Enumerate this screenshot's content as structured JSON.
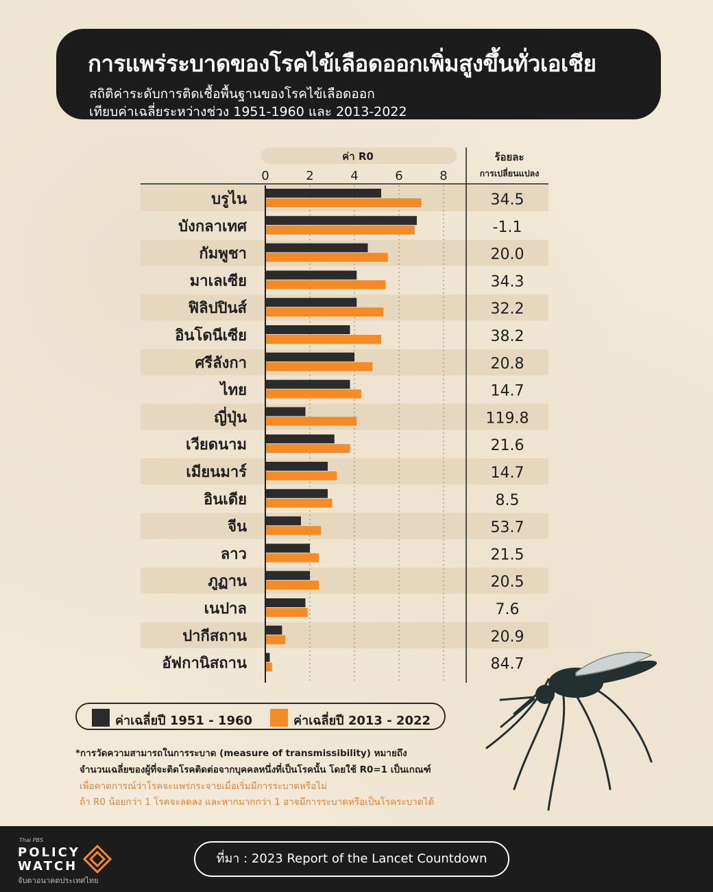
{
  "title": "การแพร่ระบาดของโรคไข้เลือดออกเพิ่มสูงขึ้นทั่วเอเชีย",
  "subtitle_line1": "สถิติค่าระดับการติดเชื้อพื้นฐานของโรคไข้เลือดออก",
  "subtitle_line2": "เทียบค่าเฉลี่ยระหว่างช่วง 1951-1960 และ 2013-2022",
  "colors": {
    "series1": "#2b2b2b",
    "series2": "#f58b27",
    "band": "#e6d8bf",
    "background": "#f3ead9",
    "dark": "#1c1c1c"
  },
  "chart_data": {
    "type": "bar",
    "orientation": "horizontal",
    "xlabel": "ค่า R0",
    "xlim": [
      0,
      8
    ],
    "xticks": [
      0,
      2,
      4,
      6,
      8
    ],
    "grid": "dotted vertical",
    "categories": [
      "บรูไน",
      "บังกลาเทศ",
      "กัมพูชา",
      "มาเลเซีย",
      "ฟิลิปปินส์",
      "อินโดนีเซีย",
      "ศรีลังกา",
      "ไทย",
      "ญี่ปุ่น",
      "เวียดนาม",
      "เมียนมาร์",
      "อินเดีย",
      "จีน",
      "ลาว",
      "ภูฏาน",
      "เนปาล",
      "ปากีสถาน",
      "อัฟกานิสถาน"
    ],
    "series": [
      {
        "name": "ค่าเฉลี่ยปี 1951 - 1960",
        "values": [
          5.2,
          6.8,
          4.6,
          4.1,
          4.1,
          3.8,
          4.0,
          3.8,
          1.8,
          3.1,
          2.8,
          2.8,
          1.6,
          2.0,
          2.0,
          1.8,
          0.75,
          0.2
        ]
      },
      {
        "name": "ค่าเฉลี่ยปี 2013 - 2022",
        "values": [
          7.0,
          6.7,
          5.5,
          5.4,
          5.3,
          5.2,
          4.8,
          4.3,
          4.1,
          3.8,
          3.2,
          3.0,
          2.5,
          2.4,
          2.4,
          1.9,
          0.9,
          0.3
        ]
      }
    ],
    "pct_change_header_line1": "ร้อยละ",
    "pct_change_header_line2": "การเปลี่ยนแปลง",
    "pct_change": [
      "34.5",
      "-1.1",
      "20.0",
      "34.3",
      "32.2",
      "38.2",
      "20.8",
      "14.7",
      "119.8",
      "21.6",
      "14.7",
      "8.5",
      "53.7",
      "21.5",
      "20.5",
      "7.6",
      "20.9",
      "84.7"
    ],
    "legend_position": "bottom-left"
  },
  "notes": {
    "line1": "*การวัดความสามารถในการระบาด (measure of transmissibility) หมายถึง",
    "line2": "จำนวนเฉลี่ยของผู้ที่จะติดโรคติดต่อจากบุคคลหนึ่งที่เป็นโรคนั้น โดยใช้ R0=1 เป็นเกณฑ์",
    "line3": "เพื่อคาดการณ์ว่าโรคจะแพร่กระจายเมื่อเริ่มมีการระบาดหรือไม่",
    "line4": "ถ้า R0 น้อยกว่า 1 โรคจะลดลง และหากมากกว่า 1 อาจมีการระบาดหรือเป็นโรคระบาดได้"
  },
  "footer": {
    "logo_line1": "Thai PBS",
    "logo_line2": "POLICY",
    "logo_line3": "WATCH",
    "logo_line4": "จับตาอนาคตประเทศไทย",
    "source": "ที่มา : 2023 Report of the Lancet Countdown"
  }
}
